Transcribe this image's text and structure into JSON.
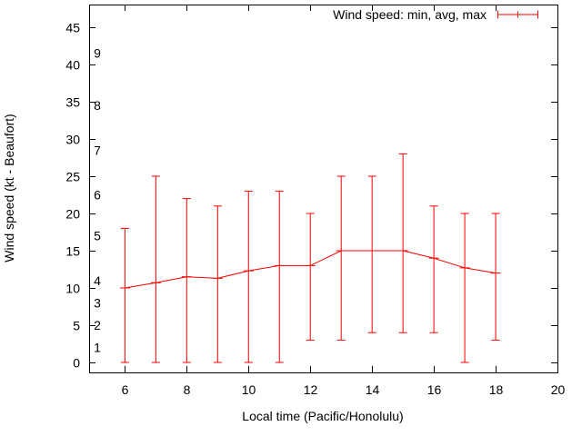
{
  "chart_data": {
    "type": "line",
    "subtype": "errorbars-min-avg-max",
    "title": "",
    "legend_label": "Wind speed: min, avg, max",
    "legend_position": "top-right",
    "xlabel": "Local time (Pacific/Honolulu)",
    "ylabel": "Wind speed (kt - Beaufort)",
    "x": [
      6,
      7,
      8,
      9,
      10,
      11,
      12,
      13,
      14,
      15,
      16,
      17,
      18
    ],
    "series": [
      {
        "name": "min",
        "values": [
          0,
          0,
          0,
          0,
          0,
          0,
          3,
          3,
          4,
          4,
          4,
          0,
          3
        ]
      },
      {
        "name": "avg",
        "values": [
          10,
          10.7,
          11.5,
          11.3,
          12.3,
          13,
          13,
          15,
          15,
          15,
          14,
          12.7,
          12
        ]
      },
      {
        "name": "max",
        "values": [
          18,
          25,
          22,
          21,
          23,
          23,
          20,
          25,
          25,
          28,
          21,
          20,
          20
        ]
      }
    ],
    "xticks": [
      6,
      8,
      10,
      12,
      14,
      16,
      18,
      20
    ],
    "yticks": [
      0,
      5,
      10,
      15,
      20,
      25,
      30,
      35,
      40,
      45
    ],
    "beaufort_ticks": [
      {
        "label": "1",
        "kt": 2
      },
      {
        "label": "2",
        "kt": 5
      },
      {
        "label": "3",
        "kt": 8
      },
      {
        "label": "4",
        "kt": 11
      },
      {
        "label": "5",
        "kt": 17
      },
      {
        "label": "6",
        "kt": 22.5
      },
      {
        "label": "7",
        "kt": 28.5
      },
      {
        "label": "8",
        "kt": 34.5
      },
      {
        "label": "9",
        "kt": 41.5
      }
    ],
    "xlim": [
      4.84,
      20
    ],
    "ylim": [
      -1.34,
      48.05
    ],
    "grid": false,
    "colors": {
      "series": "#ff0000",
      "axis": "#000000",
      "background": "#ffffff"
    }
  }
}
